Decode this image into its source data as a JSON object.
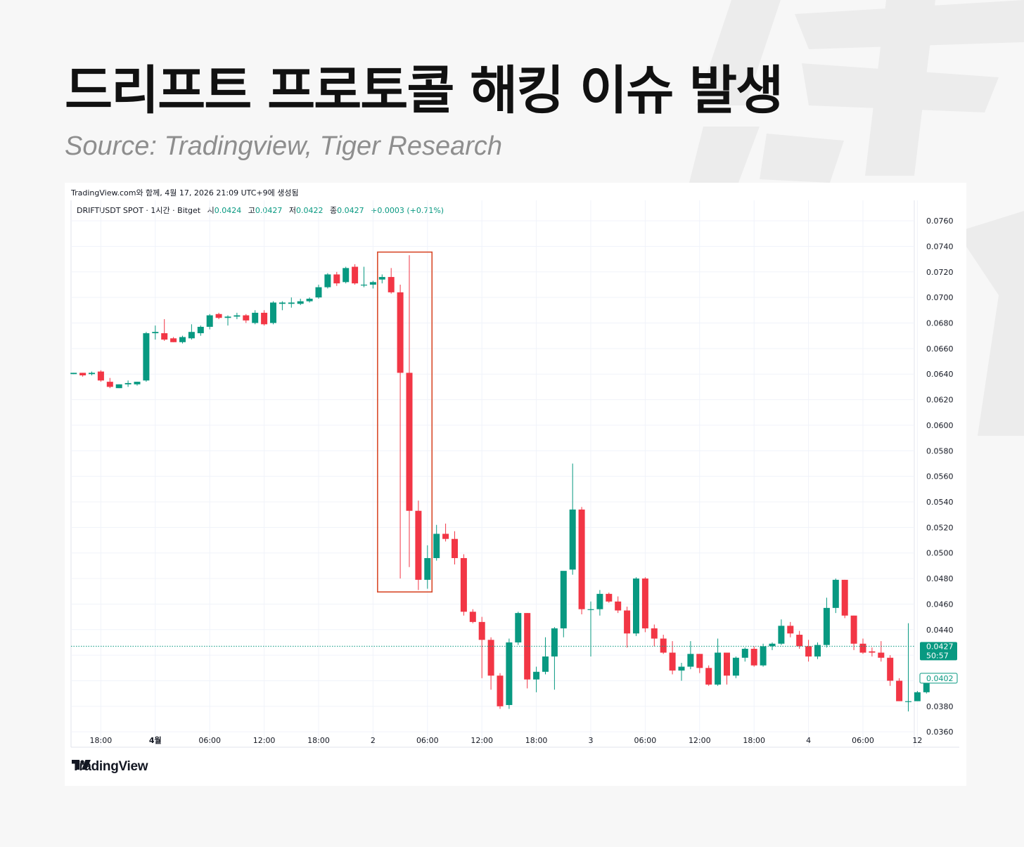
{
  "title": "드리프트 프로토콜 해킹 이슈 발생",
  "subtitle": "Source: Tradingview, Tiger Research",
  "chart_header": {
    "generated": "TradingView.com와 함께, 4월 17, 2026 21:09 UTC+9에 생성됨",
    "symbol": "DRIFTUSDT SPOT · 1시간 · Bitget",
    "open_label": "시",
    "open_value": "0.0424",
    "high_label": "고",
    "high_value": "0.0427",
    "low_label": "저",
    "low_value": "0.0422",
    "close_label": "종",
    "close_value": "0.0427",
    "change": "+0.0003 (+0.71%)"
  },
  "price_tag": {
    "price": "0.0427",
    "countdown": "50:57"
  },
  "ref_tag": {
    "price": "0.0402"
  },
  "brand": {
    "logo_text": "TradingView"
  },
  "colors": {
    "up": "#089981",
    "down": "#f23645",
    "highlight_box": "#d84a2a"
  },
  "chart_data": {
    "type": "candlestick",
    "timeframe": "1h",
    "y_ticks": [
      "0.0760",
      "0.0740",
      "0.0720",
      "0.0700",
      "0.0680",
      "0.0660",
      "0.0640",
      "0.0620",
      "0.0600",
      "0.0580",
      "0.0560",
      "0.0540",
      "0.0520",
      "0.0500",
      "0.0480",
      "0.0460",
      "0.0440",
      "0.0380",
      "0.0360"
    ],
    "ylim": [
      0.0348,
      0.0776
    ],
    "x_ticks": [
      {
        "label": "18:00",
        "bar": 3
      },
      {
        "label": "4월",
        "bar": 9
      },
      {
        "label": "06:00",
        "bar": 15
      },
      {
        "label": "12:00",
        "bar": 21
      },
      {
        "label": "18:00",
        "bar": 27
      },
      {
        "label": "2",
        "bar": 33
      },
      {
        "label": "06:00",
        "bar": 39
      },
      {
        "label": "12:00",
        "bar": 45
      },
      {
        "label": "18:00",
        "bar": 51
      },
      {
        "label": "3",
        "bar": 57
      },
      {
        "label": "06:00",
        "bar": 63
      },
      {
        "label": "12:00",
        "bar": 69
      },
      {
        "label": "18:00",
        "bar": 75
      },
      {
        "label": "4",
        "bar": 81
      },
      {
        "label": "06:00",
        "bar": 87
      },
      {
        "label": "12",
        "bar": 93
      }
    ],
    "highlight": {
      "from_bar": 33.5,
      "to_bar": 39.5,
      "high": 0.07355,
      "low": 0.04695
    },
    "current_price": 0.0427,
    "ref_price": 0.0402,
    "candles": [
      {
        "o": 0.064,
        "h": 0.0641,
        "l": 0.064,
        "c": 0.0641
      },
      {
        "o": 0.0641,
        "h": 0.0641,
        "l": 0.0638,
        "c": 0.0639
      },
      {
        "o": 0.064,
        "h": 0.0642,
        "l": 0.0639,
        "c": 0.0641
      },
      {
        "o": 0.0642,
        "h": 0.0643,
        "l": 0.0634,
        "c": 0.0635
      },
      {
        "o": 0.0634,
        "h": 0.0637,
        "l": 0.0629,
        "c": 0.063
      },
      {
        "o": 0.0629,
        "h": 0.0632,
        "l": 0.0629,
        "c": 0.0632
      },
      {
        "o": 0.0632,
        "h": 0.0635,
        "l": 0.063,
        "c": 0.0633
      },
      {
        "o": 0.0632,
        "h": 0.0634,
        "l": 0.0631,
        "c": 0.0634
      },
      {
        "o": 0.0635,
        "h": 0.0673,
        "l": 0.0634,
        "c": 0.0672
      },
      {
        "o": 0.0672,
        "h": 0.0678,
        "l": 0.0667,
        "c": 0.0673
      },
      {
        "o": 0.0672,
        "h": 0.0683,
        "l": 0.0666,
        "c": 0.0667
      },
      {
        "o": 0.0668,
        "h": 0.0669,
        "l": 0.0665,
        "c": 0.0665
      },
      {
        "o": 0.0665,
        "h": 0.067,
        "l": 0.0664,
        "c": 0.0669
      },
      {
        "o": 0.0668,
        "h": 0.0679,
        "l": 0.0667,
        "c": 0.0673
      },
      {
        "o": 0.0672,
        "h": 0.0678,
        "l": 0.067,
        "c": 0.0677
      },
      {
        "o": 0.0677,
        "h": 0.0687,
        "l": 0.0675,
        "c": 0.0686
      },
      {
        "o": 0.0687,
        "h": 0.0688,
        "l": 0.0683,
        "c": 0.0684
      },
      {
        "o": 0.0684,
        "h": 0.0686,
        "l": 0.0678,
        "c": 0.0685
      },
      {
        "o": 0.0685,
        "h": 0.0688,
        "l": 0.0683,
        "c": 0.0686
      },
      {
        "o": 0.0686,
        "h": 0.0687,
        "l": 0.068,
        "c": 0.0682
      },
      {
        "o": 0.068,
        "h": 0.069,
        "l": 0.0679,
        "c": 0.0688
      },
      {
        "o": 0.0688,
        "h": 0.069,
        "l": 0.0678,
        "c": 0.0679
      },
      {
        "o": 0.068,
        "h": 0.0697,
        "l": 0.0679,
        "c": 0.0696
      },
      {
        "o": 0.0695,
        "h": 0.0697,
        "l": 0.069,
        "c": 0.0696
      },
      {
        "o": 0.0695,
        "h": 0.07,
        "l": 0.0692,
        "c": 0.0696
      },
      {
        "o": 0.0695,
        "h": 0.0699,
        "l": 0.0694,
        "c": 0.0697
      },
      {
        "o": 0.0697,
        "h": 0.07,
        "l": 0.0696,
        "c": 0.0699
      },
      {
        "o": 0.07,
        "h": 0.071,
        "l": 0.0699,
        "c": 0.0708
      },
      {
        "o": 0.0708,
        "h": 0.0719,
        "l": 0.0707,
        "c": 0.0718
      },
      {
        "o": 0.0718,
        "h": 0.072,
        "l": 0.0709,
        "c": 0.0711
      },
      {
        "o": 0.0712,
        "h": 0.0724,
        "l": 0.0711,
        "c": 0.0723
      },
      {
        "o": 0.0724,
        "h": 0.0726,
        "l": 0.071,
        "c": 0.0711
      },
      {
        "o": 0.071,
        "h": 0.0724,
        "l": 0.0708,
        "c": 0.071
      },
      {
        "o": 0.071,
        "h": 0.0713,
        "l": 0.0707,
        "c": 0.0712
      },
      {
        "o": 0.0714,
        "h": 0.0718,
        "l": 0.0711,
        "c": 0.0716
      },
      {
        "o": 0.0716,
        "h": 0.0723,
        "l": 0.0703,
        "c": 0.0704
      },
      {
        "o": 0.0704,
        "h": 0.071,
        "l": 0.048,
        "c": 0.0641
      },
      {
        "o": 0.0641,
        "h": 0.0733,
        "l": 0.0489,
        "c": 0.0533
      },
      {
        "o": 0.0533,
        "h": 0.0541,
        "l": 0.0471,
        "c": 0.0479
      },
      {
        "o": 0.0479,
        "h": 0.0506,
        "l": 0.0472,
        "c": 0.0496
      },
      {
        "o": 0.0496,
        "h": 0.0522,
        "l": 0.0494,
        "c": 0.0515
      },
      {
        "o": 0.0515,
        "h": 0.0523,
        "l": 0.0509,
        "c": 0.0511
      },
      {
        "o": 0.0511,
        "h": 0.0517,
        "l": 0.0491,
        "c": 0.0496
      },
      {
        "o": 0.0496,
        "h": 0.0499,
        "l": 0.0451,
        "c": 0.0454
      },
      {
        "o": 0.0454,
        "h": 0.0456,
        "l": 0.0445,
        "c": 0.0446
      },
      {
        "o": 0.0446,
        "h": 0.045,
        "l": 0.0402,
        "c": 0.0432
      },
      {
        "o": 0.0432,
        "h": 0.0434,
        "l": 0.0393,
        "c": 0.0404
      },
      {
        "o": 0.0404,
        "h": 0.0406,
        "l": 0.0378,
        "c": 0.038
      },
      {
        "o": 0.0381,
        "h": 0.0433,
        "l": 0.0378,
        "c": 0.043
      },
      {
        "o": 0.043,
        "h": 0.0454,
        "l": 0.0428,
        "c": 0.0453
      },
      {
        "o": 0.0453,
        "h": 0.0453,
        "l": 0.0394,
        "c": 0.0401
      },
      {
        "o": 0.0401,
        "h": 0.0411,
        "l": 0.0391,
        "c": 0.0407
      },
      {
        "o": 0.0407,
        "h": 0.0434,
        "l": 0.0405,
        "c": 0.0419
      },
      {
        "o": 0.0419,
        "h": 0.0442,
        "l": 0.0393,
        "c": 0.0441
      },
      {
        "o": 0.0441,
        "h": 0.0485,
        "l": 0.0434,
        "c": 0.0486
      },
      {
        "o": 0.0487,
        "h": 0.057,
        "l": 0.0483,
        "c": 0.0534
      },
      {
        "o": 0.0534,
        "h": 0.0536,
        "l": 0.0452,
        "c": 0.0456
      },
      {
        "o": 0.0456,
        "h": 0.0462,
        "l": 0.0419,
        "c": 0.0456
      },
      {
        "o": 0.0456,
        "h": 0.0471,
        "l": 0.0451,
        "c": 0.0468
      },
      {
        "o": 0.0468,
        "h": 0.0469,
        "l": 0.0461,
        "c": 0.0462
      },
      {
        "o": 0.0462,
        "h": 0.0466,
        "l": 0.0453,
        "c": 0.0455
      },
      {
        "o": 0.0455,
        "h": 0.0458,
        "l": 0.0426,
        "c": 0.0437
      },
      {
        "o": 0.0437,
        "h": 0.0481,
        "l": 0.0435,
        "c": 0.048
      },
      {
        "o": 0.048,
        "h": 0.0481,
        "l": 0.0438,
        "c": 0.0441
      },
      {
        "o": 0.0441,
        "h": 0.0444,
        "l": 0.0427,
        "c": 0.0433
      },
      {
        "o": 0.0433,
        "h": 0.0436,
        "l": 0.0421,
        "c": 0.0422
      },
      {
        "o": 0.0422,
        "h": 0.0431,
        "l": 0.0405,
        "c": 0.0408
      },
      {
        "o": 0.0408,
        "h": 0.0414,
        "l": 0.04,
        "c": 0.0411
      },
      {
        "o": 0.0411,
        "h": 0.0431,
        "l": 0.0409,
        "c": 0.0421
      },
      {
        "o": 0.0421,
        "h": 0.0421,
        "l": 0.0406,
        "c": 0.041
      },
      {
        "o": 0.041,
        "h": 0.0412,
        "l": 0.0396,
        "c": 0.0397
      },
      {
        "o": 0.0397,
        "h": 0.0433,
        "l": 0.0396,
        "c": 0.0422
      },
      {
        "o": 0.0422,
        "h": 0.0422,
        "l": 0.0397,
        "c": 0.0404
      },
      {
        "o": 0.0404,
        "h": 0.0419,
        "l": 0.0402,
        "c": 0.0418
      },
      {
        "o": 0.0418,
        "h": 0.0426,
        "l": 0.0415,
        "c": 0.0425
      },
      {
        "o": 0.0425,
        "h": 0.0427,
        "l": 0.0411,
        "c": 0.0412
      },
      {
        "o": 0.0412,
        "h": 0.0429,
        "l": 0.0411,
        "c": 0.0427
      },
      {
        "o": 0.0427,
        "h": 0.043,
        "l": 0.0424,
        "c": 0.0429
      },
      {
        "o": 0.0429,
        "h": 0.0448,
        "l": 0.0428,
        "c": 0.0443
      },
      {
        "o": 0.0443,
        "h": 0.0446,
        "l": 0.0434,
        "c": 0.0437
      },
      {
        "o": 0.0436,
        "h": 0.0439,
        "l": 0.0425,
        "c": 0.0427
      },
      {
        "o": 0.0427,
        "h": 0.0432,
        "l": 0.0415,
        "c": 0.0419
      },
      {
        "o": 0.0419,
        "h": 0.043,
        "l": 0.0417,
        "c": 0.0428
      },
      {
        "o": 0.0428,
        "h": 0.0465,
        "l": 0.0426,
        "c": 0.0457
      },
      {
        "o": 0.0457,
        "h": 0.048,
        "l": 0.0453,
        "c": 0.0479
      },
      {
        "o": 0.0479,
        "h": 0.0479,
        "l": 0.0449,
        "c": 0.0451
      },
      {
        "o": 0.0451,
        "h": 0.0451,
        "l": 0.0424,
        "c": 0.0429
      },
      {
        "o": 0.0429,
        "h": 0.0433,
        "l": 0.0421,
        "c": 0.0422
      },
      {
        "o": 0.0423,
        "h": 0.0426,
        "l": 0.0419,
        "c": 0.0422
      },
      {
        "o": 0.0422,
        "h": 0.0431,
        "l": 0.0415,
        "c": 0.0418
      },
      {
        "o": 0.0418,
        "h": 0.042,
        "l": 0.0396,
        "c": 0.04
      },
      {
        "o": 0.04,
        "h": 0.0402,
        "l": 0.0384,
        "c": 0.0384
      },
      {
        "o": 0.0384,
        "h": 0.0445,
        "l": 0.0376,
        "c": 0.0384
      },
      {
        "o": 0.0384,
        "h": 0.0392,
        "l": 0.0384,
        "c": 0.0391
      },
      {
        "o": 0.0391,
        "h": 0.0402,
        "l": 0.039,
        "c": 0.0402
      }
    ]
  }
}
